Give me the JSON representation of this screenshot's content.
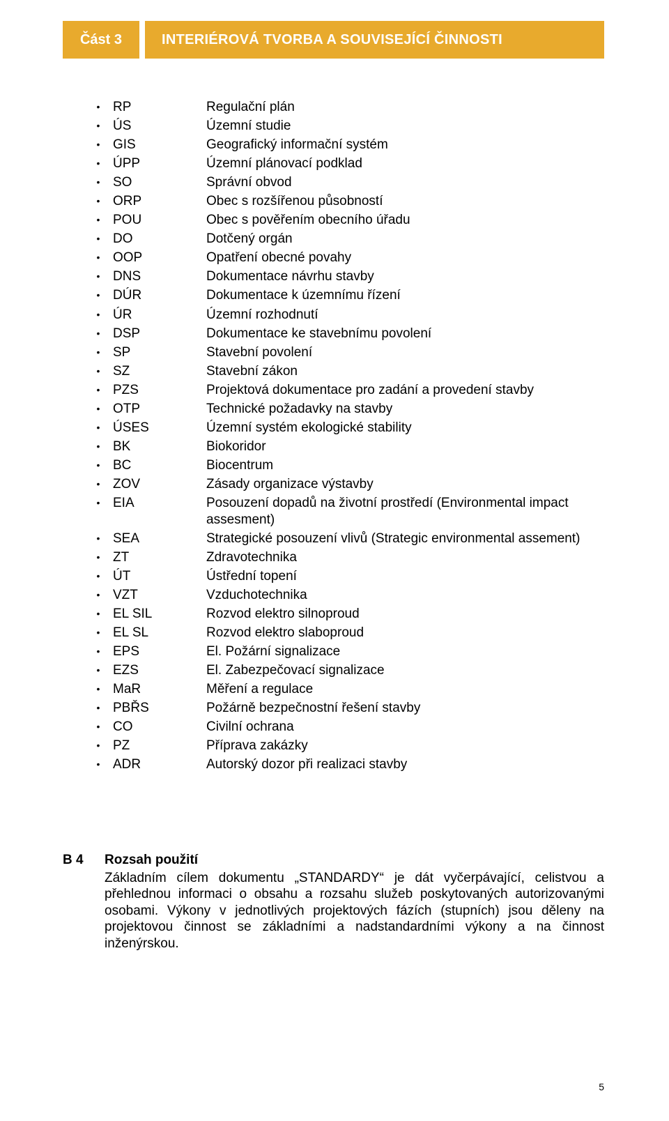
{
  "header": {
    "part": "Část 3",
    "title": "INTERIÉROVÁ TVORBA A SOUVISEJÍCÍ ČINNOSTI"
  },
  "list": [
    {
      "abbr": "RP",
      "def": "Regulační plán"
    },
    {
      "abbr": "ÚS",
      "def": "Územní studie"
    },
    {
      "abbr": "GIS",
      "def": "Geografický informační systém"
    },
    {
      "abbr": "ÚPP",
      "def": "Územní plánovací podklad"
    },
    {
      "abbr": "SO",
      "def": "Správní obvod"
    },
    {
      "abbr": "ORP",
      "def": "Obec s rozšířenou působností"
    },
    {
      "abbr": "POU",
      "def": "Obec s pověřením obecního úřadu"
    },
    {
      "abbr": "DO",
      "def": "Dotčený orgán"
    },
    {
      "abbr": "OOP",
      "def": "Opatření obecné povahy"
    },
    {
      "abbr": "DNS",
      "def": "Dokumentace návrhu stavby"
    },
    {
      "abbr": "DÚR",
      "def": "Dokumentace k územnímu řízení"
    },
    {
      "abbr": "ÚR",
      "def": "Územní rozhodnutí"
    },
    {
      "abbr": "DSP",
      "def": "Dokumentace ke stavebnímu povolení"
    },
    {
      "abbr": "SP",
      "def": "Stavební povolení"
    },
    {
      "abbr": "SZ",
      "def": "Stavební zákon"
    },
    {
      "abbr": "PZS",
      "def": "Projektová dokumentace pro zadání a provedení stavby"
    },
    {
      "abbr": "OTP",
      "def": "Technické požadavky na stavby"
    },
    {
      "abbr": "ÚSES",
      "def": "Územní systém ekologické stability"
    },
    {
      "abbr": "BK",
      "def": "Biokoridor"
    },
    {
      "abbr": "BC",
      "def": "Biocentrum"
    },
    {
      "abbr": "ZOV",
      "def": "Zásady organizace výstavby"
    },
    {
      "abbr": "EIA",
      "def": "Posouzení dopadů na životní prostředí (Environmental impact assesment)"
    },
    {
      "abbr": "SEA",
      "def": "Strategické posouzení vlivů (Strategic environmental assement)"
    },
    {
      "abbr": "ZT",
      "def": "Zdravotechnika"
    },
    {
      "abbr": "ÚT",
      "def": "Ústřední topení"
    },
    {
      "abbr": "VZT",
      "def": "Vzduchotechnika"
    },
    {
      "abbr": "EL SIL",
      "def": "Rozvod elektro silnoproud"
    },
    {
      "abbr": "EL SL",
      "def": "Rozvod elektro slaboproud"
    },
    {
      "abbr": "EPS",
      "def": "El. Požární signalizace"
    },
    {
      "abbr": "EZS",
      "def": "El. Zabezpečovací signalizace"
    },
    {
      "abbr": "MaR",
      "def": "Měření a regulace"
    },
    {
      "abbr": "PBŘS",
      "def": "Požárně bezpečnostní řešení stavby"
    },
    {
      "abbr": "CO",
      "def": "Civilní ochrana"
    },
    {
      "abbr": "PZ",
      "def": "Příprava zakázky"
    },
    {
      "abbr": "ADR",
      "def": "Autorský dozor při realizaci stavby"
    }
  ],
  "section": {
    "num": "B 4",
    "title": "Rozsah použití",
    "body": "Základním cílem dokumentu „STANDARDY“ je dát vyčerpávající, celistvou a přehlednou informaci o obsahu a rozsahu služeb poskytovaných autorizovanými osobami. Výkony v jednotlivých projektových fázích (stupních) jsou děleny na projektovou činnost se základními a nadstandardními výkony a na činnost inženýrskou."
  },
  "page_number": "5"
}
